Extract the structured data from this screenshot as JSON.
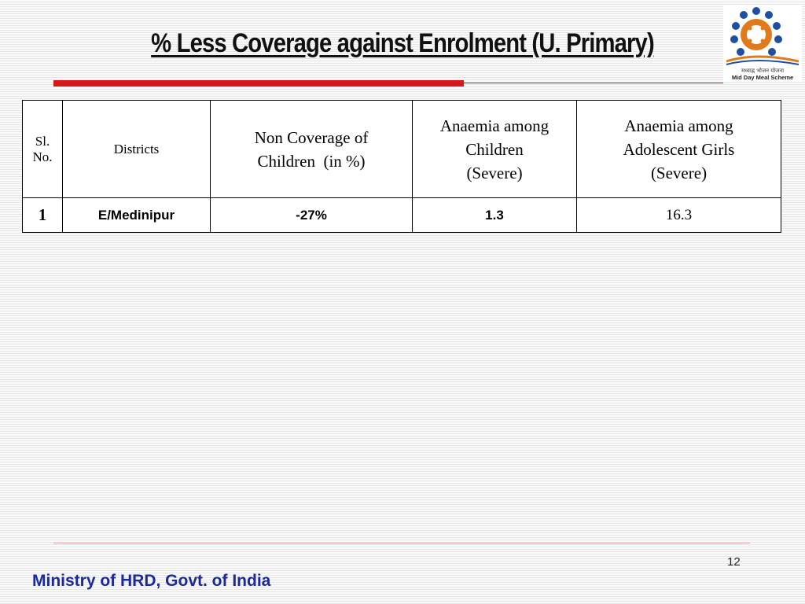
{
  "slide": {
    "title": "% Less Coverage against Enrolment (U. Primary)",
    "page_number": "12",
    "footer": "Ministry of HRD, Govt. of India"
  },
  "logo": {
    "hindi_text": "मध्याह्न भोजन योजना",
    "english_text": "Mid Day Meal Scheme",
    "icon": "mid-day-meal-logo"
  },
  "table": {
    "headers": {
      "sl_no_line1": "Sl.",
      "sl_no_line2": "No.",
      "districts": "Districts",
      "non_coverage_line1": "Non Coverage of",
      "non_coverage_line2": "Children  (in %)",
      "anaemia_children_line1": "Anaemia among",
      "anaemia_children_line2": "Children",
      "anaemia_children_line3": "(Severe)",
      "anaemia_girls_line1": "Anaemia among",
      "anaemia_girls_line2": "Adolescent Girls",
      "anaemia_girls_line3": "(Severe)"
    },
    "rows": [
      {
        "sl_no": "1",
        "district": "E/Medinipur",
        "non_coverage": "-27%",
        "anaemia_children": "1.3",
        "anaemia_girls": "16.3"
      }
    ]
  },
  "colors": {
    "accent_red": "#d4181c",
    "footer_blue": "#1a2a9a"
  }
}
